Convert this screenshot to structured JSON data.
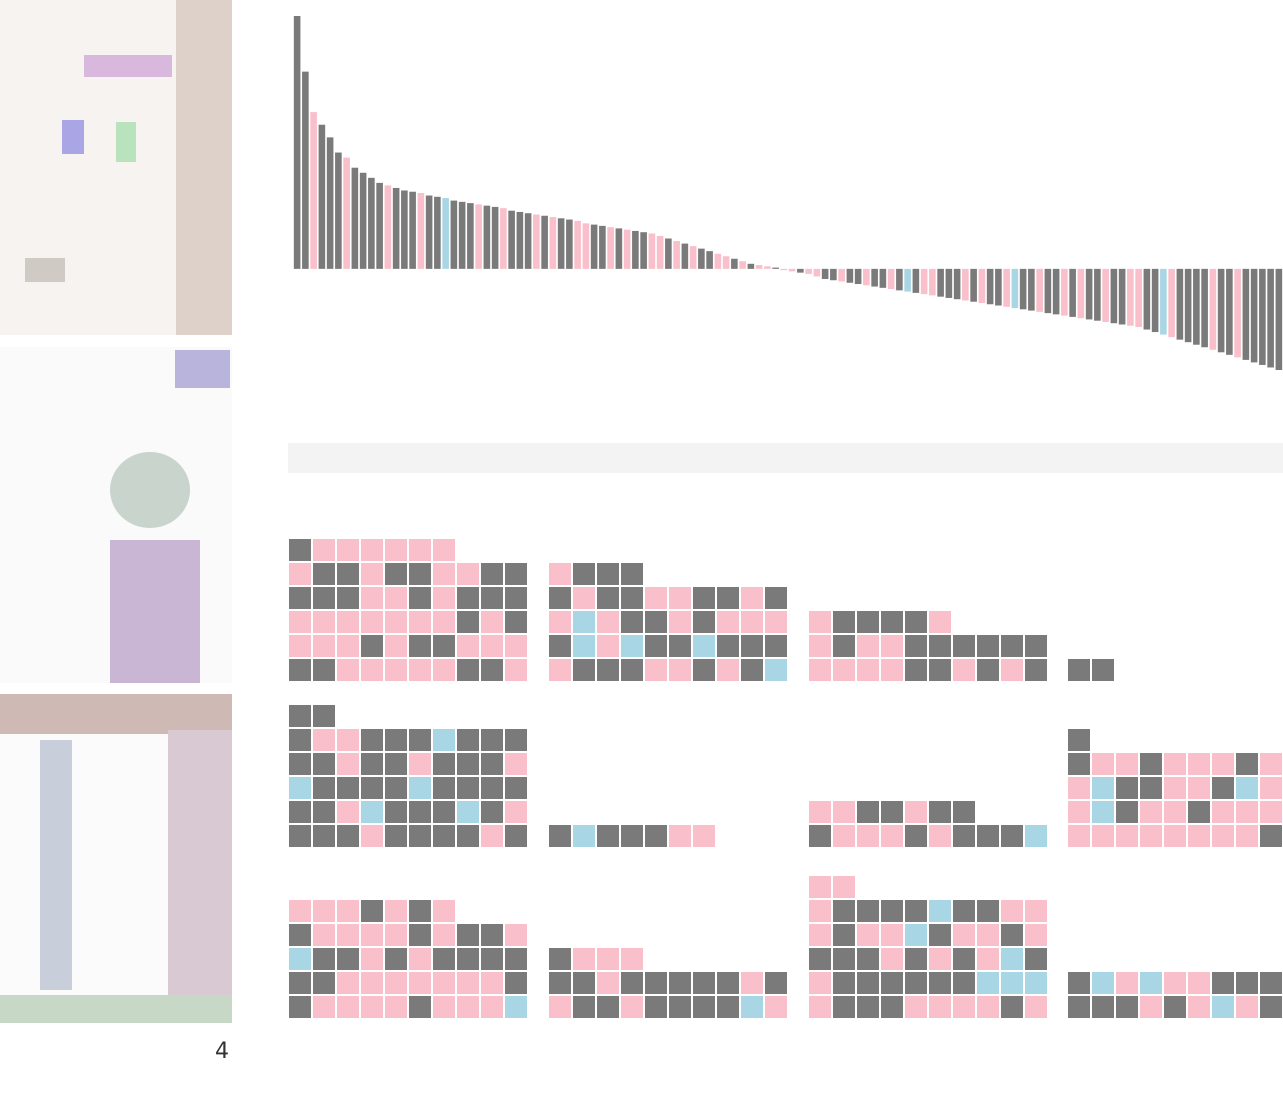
{
  "chart_data": {
    "type": "bar",
    "values": [
      100,
      78,
      62,
      57,
      52,
      46,
      44,
      40,
      38,
      36,
      34,
      33,
      32,
      31,
      30.5,
      30,
      29,
      28.5,
      28,
      27,
      26.5,
      26,
      25.5,
      25,
      24.5,
      24,
      23,
      22.5,
      22,
      21.5,
      21,
      20.5,
      20,
      19.5,
      19,
      18,
      17.5,
      17,
      16.5,
      16,
      15.5,
      15,
      14.5,
      14,
      13,
      12,
      11,
      10,
      9,
      8,
      7,
      6,
      5,
      4,
      3,
      2,
      1.5,
      1,
      0.5,
      -0.5,
      -1,
      -1.5,
      -2,
      -3,
      -4,
      -4.5,
      -5,
      -5.5,
      -6,
      -6.5,
      -7,
      -7.5,
      -8,
      -8.5,
      -9,
      -9.5,
      -10,
      -10.5,
      -11,
      -11.5,
      -12,
      -12.5,
      -13,
      -13.5,
      -14,
      -14.5,
      -15,
      -15.5,
      -16,
      -16.5,
      -17,
      -17.5,
      -18,
      -18.5,
      -19,
      -19.5,
      -20,
      -20.5,
      -21,
      -21.5,
      -22,
      -22.5,
      -23,
      -24,
      -25,
      -26,
      -27,
      -28,
      -29,
      -30,
      -31,
      -32,
      -33,
      -34,
      -35,
      -36,
      -37,
      -38,
      -39,
      -40
    ],
    "colors": [
      "#7a7a7a",
      "#7a7a7a",
      "#f9c0cb",
      "#7a7a7a",
      "#7a7a7a",
      "#7a7a7a",
      "#f9c0cb",
      "#7a7a7a",
      "#7a7a7a",
      "#7a7a7a",
      "#7a7a7a",
      "#f9c0cb",
      "#7a7a7a",
      "#7a7a7a",
      "#7a7a7a",
      "#f9c0cb",
      "#7a7a7a",
      "#7a7a7a",
      "#a9d6e5",
      "#7a7a7a",
      "#7a7a7a",
      "#7a7a7a",
      "#f9c0cb",
      "#7a7a7a",
      "#7a7a7a",
      "#f9c0cb",
      "#7a7a7a",
      "#7a7a7a",
      "#7a7a7a",
      "#f9c0cb",
      "#7a7a7a",
      "#f9c0cb",
      "#7a7a7a",
      "#7a7a7a",
      "#f9c0cb",
      "#f9c0cb",
      "#7a7a7a",
      "#7a7a7a",
      "#f9c0cb",
      "#7a7a7a",
      "#f9c0cb",
      "#7a7a7a",
      "#7a7a7a",
      "#f9c0cb",
      "#f9c0cb",
      "#7a7a7a",
      "#f9c0cb",
      "#7a7a7a",
      "#f9c0cb",
      "#7a7a7a",
      "#7a7a7a",
      "#f9c0cb",
      "#f9c0cb",
      "#7a7a7a",
      "#f9c0cb",
      "#7a7a7a",
      "#f9c0cb",
      "#f9c0cb",
      "#7a7a7a",
      "#f9c0cb",
      "#f9c0cb",
      "#7a7a7a",
      "#f9c0cb",
      "#f9c0cb",
      "#7a7a7a",
      "#7a7a7a",
      "#f9c0cb",
      "#7a7a7a",
      "#7a7a7a",
      "#f9c0cb",
      "#7a7a7a",
      "#7a7a7a",
      "#f9c0cb",
      "#7a7a7a",
      "#a9d6e5",
      "#7a7a7a",
      "#f9c0cb",
      "#f9c0cb",
      "#7a7a7a",
      "#7a7a7a",
      "#7a7a7a",
      "#f9c0cb",
      "#7a7a7a",
      "#f9c0cb",
      "#7a7a7a",
      "#7a7a7a",
      "#f9c0cb",
      "#a9d6e5",
      "#7a7a7a",
      "#7a7a7a",
      "#f9c0cb",
      "#7a7a7a",
      "#7a7a7a",
      "#f9c0cb",
      "#7a7a7a",
      "#f9c0cb",
      "#7a7a7a",
      "#7a7a7a",
      "#f9c0cb",
      "#7a7a7a",
      "#7a7a7a",
      "#f9c0cb",
      "#f9c0cb",
      "#7a7a7a",
      "#7a7a7a",
      "#a9d6e5",
      "#f9c0cb",
      "#7a7a7a",
      "#7a7a7a",
      "#7a7a7a",
      "#7a7a7a",
      "#f9c0cb",
      "#7a7a7a",
      "#7a7a7a",
      "#f9c0cb",
      "#7a7a7a",
      "#7a7a7a",
      "#7a7a7a",
      "#7a7a7a",
      "#7a7a7a"
    ],
    "ylim": [
      -40,
      100
    ]
  },
  "waffles": {
    "colors": [
      "#7a7a7a",
      "#f9c0cb",
      "#a9d6e5"
    ],
    "panels": [
      {
        "cells": [
          [
            0,
            1,
            1,
            1,
            1,
            1,
            1
          ],
          [
            1,
            0,
            0,
            1,
            0,
            0,
            1,
            1,
            0,
            0
          ],
          [
            0,
            0,
            0,
            1,
            1,
            0,
            1,
            0,
            0,
            0
          ],
          [
            1,
            1,
            1,
            1,
            1,
            1,
            1,
            0,
            1,
            0
          ],
          [
            1,
            1,
            1,
            0,
            1,
            0,
            0,
            1,
            1,
            1
          ],
          [
            0,
            0,
            1,
            1,
            1,
            1,
            1,
            0,
            0,
            1
          ]
        ]
      },
      {
        "cells": [
          [
            1,
            0,
            0,
            0
          ],
          [
            0,
            1,
            0,
            0,
            1,
            1,
            0,
            0,
            1,
            0
          ],
          [
            1,
            2,
            1,
            0,
            0,
            1,
            0,
            1,
            1,
            1
          ],
          [
            0,
            2,
            1,
            2,
            0,
            0,
            2,
            0,
            0,
            0
          ],
          [
            1,
            0,
            0,
            0,
            1,
            1,
            0,
            1,
            0,
            2
          ]
        ]
      },
      {
        "cells": [
          [
            1,
            0,
            0,
            0,
            0,
            1
          ],
          [
            1,
            0,
            1,
            1,
            0,
            0,
            0,
            0,
            0,
            0
          ],
          [
            1,
            1,
            1,
            1,
            0,
            0,
            1,
            0,
            1,
            0
          ]
        ]
      },
      {
        "cells": [
          [
            0,
            0
          ]
        ]
      },
      {
        "cells": [
          [
            0,
            0
          ],
          [
            0,
            1,
            1,
            0,
            0,
            0,
            2,
            0,
            0,
            0
          ],
          [
            0,
            0,
            1,
            0,
            0,
            1,
            0,
            0,
            0,
            1
          ],
          [
            2,
            0,
            0,
            0,
            0,
            2,
            0,
            0,
            0,
            0
          ],
          [
            0,
            0,
            1,
            2,
            0,
            0,
            0,
            2,
            0,
            1
          ],
          [
            0,
            0,
            0,
            1,
            0,
            0,
            0,
            0,
            1,
            0
          ]
        ]
      },
      {
        "cells": [
          [
            0,
            2,
            0,
            0,
            0,
            1,
            1
          ]
        ]
      },
      {
        "cells": [
          [
            1,
            1,
            0,
            0,
            1,
            0,
            0
          ],
          [
            0,
            1,
            1,
            1,
            0,
            1,
            0,
            0,
            0,
            2
          ]
        ]
      },
      {
        "cells": [
          [
            0
          ],
          [
            0,
            1,
            1,
            0,
            1,
            1,
            1,
            0,
            1,
            0
          ],
          [
            1,
            2,
            0,
            0,
            1,
            1,
            0,
            2,
            1,
            0
          ],
          [
            1,
            2,
            0,
            1,
            1,
            0,
            1,
            1,
            1,
            0
          ],
          [
            1,
            1,
            1,
            1,
            1,
            1,
            1,
            1,
            0,
            0
          ]
        ]
      },
      {
        "cells": [
          [
            1,
            1,
            1,
            0,
            1,
            0,
            1
          ],
          [
            0,
            1,
            1,
            1,
            1,
            0,
            1,
            0,
            0,
            1
          ],
          [
            2,
            0,
            0,
            1,
            0,
            1,
            0,
            0,
            0,
            0
          ],
          [
            0,
            0,
            1,
            1,
            1,
            1,
            1,
            1,
            1,
            0
          ],
          [
            0,
            1,
            1,
            1,
            1,
            0,
            1,
            1,
            1,
            2
          ]
        ]
      },
      {
        "cells": [
          [
            0,
            1,
            1,
            1
          ],
          [
            0,
            0,
            1,
            0,
            0,
            0,
            0,
            0,
            1,
            0
          ],
          [
            1,
            0,
            0,
            1,
            0,
            0,
            0,
            0,
            2,
            1
          ]
        ]
      },
      {
        "cells": [
          [
            1,
            1
          ],
          [
            1,
            0,
            0,
            0,
            0,
            2,
            0,
            0,
            1,
            1
          ],
          [
            1,
            0,
            1,
            1,
            2,
            0,
            1,
            1,
            0,
            1
          ],
          [
            0,
            0,
            0,
            1,
            0,
            1,
            0,
            1,
            2,
            0
          ],
          [
            1,
            0,
            0,
            0,
            0,
            0,
            0,
            2,
            2,
            2
          ],
          [
            1,
            0,
            0,
            0,
            1,
            1,
            1,
            1,
            0,
            1
          ]
        ]
      },
      {
        "cells": [
          [
            0,
            2,
            1,
            2,
            1,
            1,
            0,
            0,
            0,
            0
          ],
          [
            0,
            0,
            0,
            1,
            0,
            1,
            2,
            1,
            0,
            0
          ]
        ]
      }
    ]
  },
  "page_number": "4"
}
